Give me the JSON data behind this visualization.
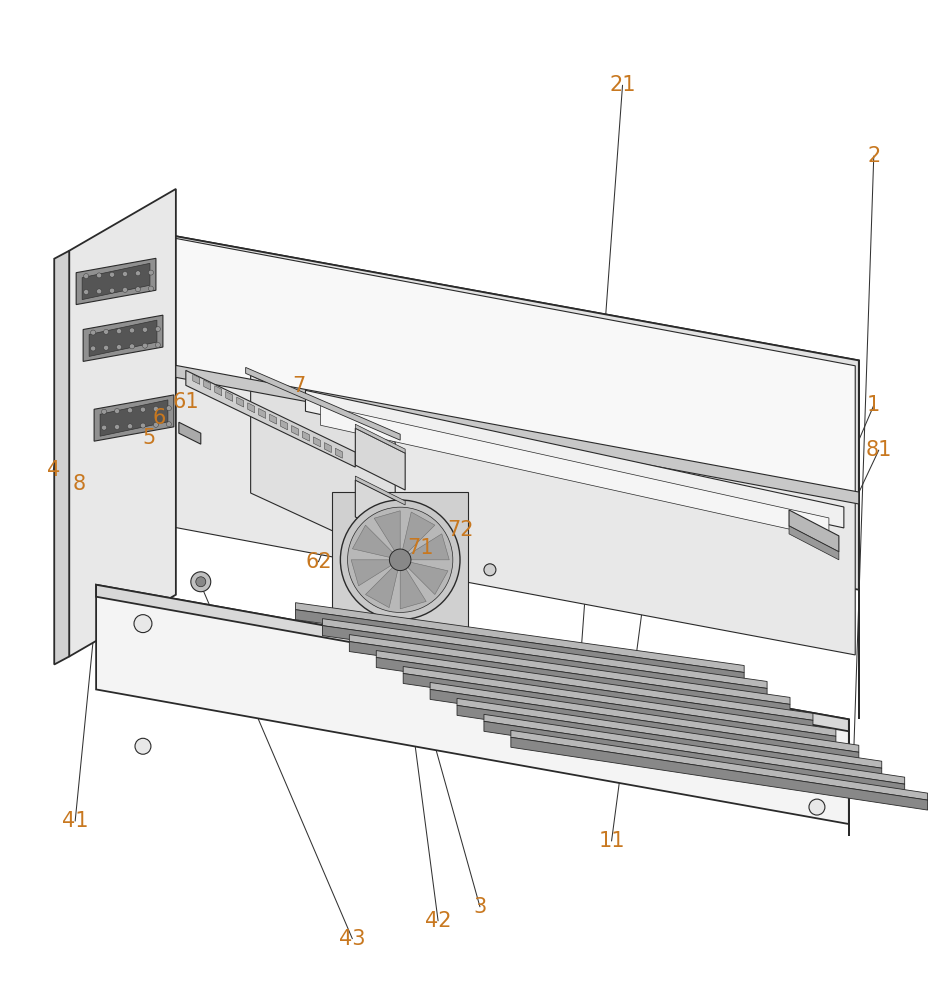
{
  "bg_color": "#ffffff",
  "line_color": "#2a2a2a",
  "label_color": "#c87820",
  "label_fontsize": 15,
  "figsize": [
    9.29,
    10.0
  ],
  "dpi": 100
}
